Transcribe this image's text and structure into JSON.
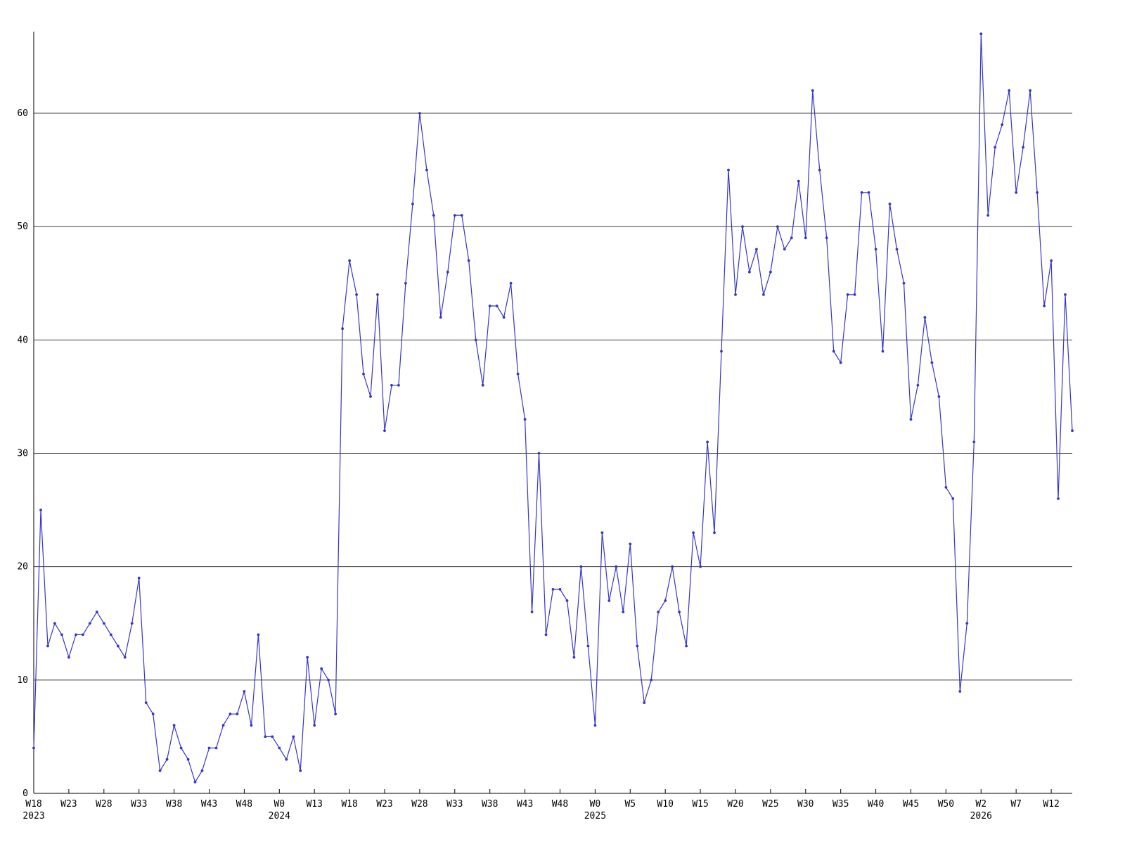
{
  "chart_data": {
    "type": "line",
    "title": "",
    "xlabel": "",
    "ylabel": "",
    "legend": "none",
    "grid": "horizontal",
    "background": "#ffffff",
    "line_color": "#3535cd",
    "marker_color": "#3535cd",
    "grid_color": "#404040",
    "axis_color": "#000000",
    "text_color": "#000000",
    "ylim": [
      0,
      67.2
    ],
    "y_ticks": [
      0,
      10,
      20,
      30,
      40,
      50,
      60
    ],
    "x_ticks": [
      {
        "i": 0,
        "label": "W18",
        "year": "2023"
      },
      {
        "i": 5,
        "label": "W23"
      },
      {
        "i": 10,
        "label": "W28"
      },
      {
        "i": 15,
        "label": "W33"
      },
      {
        "i": 20,
        "label": "W38"
      },
      {
        "i": 25,
        "label": "W43"
      },
      {
        "i": 30,
        "label": "W48"
      },
      {
        "i": 35,
        "label": "W0",
        "year": "2024"
      },
      {
        "i": 40,
        "label": "W13"
      },
      {
        "i": 45,
        "label": "W18"
      },
      {
        "i": 50,
        "label": "W23"
      },
      {
        "i": 55,
        "label": "W28"
      },
      {
        "i": 60,
        "label": "W33"
      },
      {
        "i": 65,
        "label": "W38"
      },
      {
        "i": 70,
        "label": "W43"
      },
      {
        "i": 75,
        "label": "W48"
      },
      {
        "i": 80,
        "label": "W0",
        "year": "2025"
      },
      {
        "i": 85,
        "label": "W5"
      },
      {
        "i": 90,
        "label": "W10"
      },
      {
        "i": 95,
        "label": "W15"
      },
      {
        "i": 100,
        "label": "W20"
      },
      {
        "i": 105,
        "label": "W25"
      },
      {
        "i": 110,
        "label": "W30"
      },
      {
        "i": 115,
        "label": "W35"
      },
      {
        "i": 120,
        "label": "W40"
      },
      {
        "i": 125,
        "label": "W45"
      },
      {
        "i": 130,
        "label": "W50"
      },
      {
        "i": 135,
        "label": "W2",
        "year": "2026"
      },
      {
        "i": 140,
        "label": "W7"
      },
      {
        "i": 145,
        "label": "W12"
      }
    ],
    "values": [
      4,
      25,
      13,
      15,
      14,
      12,
      14,
      14,
      15,
      16,
      15,
      14,
      13,
      12,
      15,
      19,
      8,
      7,
      2,
      3,
      6,
      4,
      3,
      1,
      2,
      4,
      4,
      6,
      7,
      7,
      9,
      6,
      14,
      5,
      5,
      4,
      3,
      5,
      2,
      12,
      6,
      11,
      10,
      7,
      41,
      47,
      44,
      37,
      35,
      44,
      32,
      36,
      36,
      45,
      52,
      60,
      55,
      51,
      42,
      46,
      51,
      51,
      47,
      40,
      36,
      43,
      43,
      42,
      45,
      37,
      33,
      16,
      30,
      14,
      18,
      18,
      17,
      12,
      20,
      13,
      6,
      23,
      17,
      20,
      16,
      22,
      13,
      8,
      10,
      16,
      17,
      20,
      16,
      13,
      23,
      20,
      31,
      23,
      39,
      55,
      44,
      50,
      46,
      48,
      44,
      46,
      50,
      48,
      49,
      54,
      49,
      62,
      55,
      49,
      39,
      38,
      44,
      44,
      53,
      53,
      48,
      39,
      52,
      48,
      45,
      33,
      36,
      42,
      38,
      35,
      27,
      26,
      9,
      15,
      31,
      67,
      51,
      57,
      59,
      62,
      53,
      57,
      62,
      53,
      43,
      47,
      26,
      44,
      32
    ]
  }
}
